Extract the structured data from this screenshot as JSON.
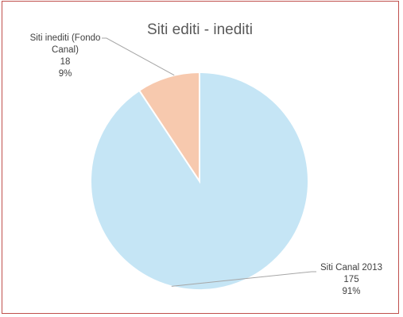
{
  "chart_data": {
    "type": "pie",
    "title": "Siti editi - inediti",
    "categories": [
      "Siti Canal 2013",
      "Siti inediti (Fondo Canal)"
    ],
    "values": [
      175,
      18
    ],
    "percentages": [
      "91%",
      "9%"
    ],
    "colors": [
      "#c5e5f5",
      "#f7c9ae"
    ],
    "slice_stroke": "#ffffff",
    "leader_color": "#a6a6a6",
    "frame_color": "#c0504d",
    "labels": {
      "canal": {
        "name": "Siti Canal 2013",
        "value": "175",
        "percent": "91%"
      },
      "inediti": {
        "name_line1": "Siti inediti (Fondo",
        "name_line2": "Canal)",
        "value": "18",
        "percent": "9%"
      }
    }
  }
}
